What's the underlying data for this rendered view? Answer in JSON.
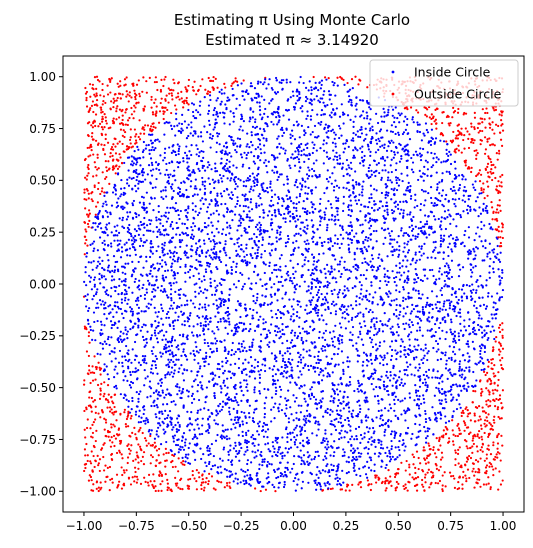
{
  "chart_data": {
    "type": "scatter",
    "title": "Estimating π Using Monte Carlo",
    "subtitle": "Estimated π ≈ 3.14920",
    "xlabel": "",
    "ylabel": "",
    "xlim": [
      -1.1,
      1.1
    ],
    "ylim": [
      -1.1,
      1.1
    ],
    "x_ticks": [
      -1.0,
      -0.75,
      -0.5,
      -0.25,
      0.0,
      0.25,
      0.5,
      0.75,
      1.0
    ],
    "y_ticks": [
      -1.0,
      -0.75,
      -0.5,
      -0.25,
      0.0,
      0.25,
      0.5,
      0.75,
      1.0
    ],
    "x_tick_labels": [
      "−1.00",
      "−0.75",
      "−0.50",
      "−0.25",
      "0.00",
      "0.25",
      "0.50",
      "0.75",
      "1.00"
    ],
    "y_tick_labels": [
      "−1.00",
      "−0.75",
      "−0.50",
      "−0.25",
      "0.00",
      "0.25",
      "0.50",
      "0.75",
      "1.00"
    ],
    "grid": false,
    "legend_position": "top-right",
    "sample_domain": [
      -1,
      1
    ],
    "circle_radius": 1,
    "series": [
      {
        "name": "Inside Circle",
        "color": "#0000ff",
        "rule": "x^2 + y^2 <= 1"
      },
      {
        "name": "Outside Circle",
        "color": "#ff0000",
        "rule": "x^2 + y^2 > 1"
      }
    ]
  }
}
